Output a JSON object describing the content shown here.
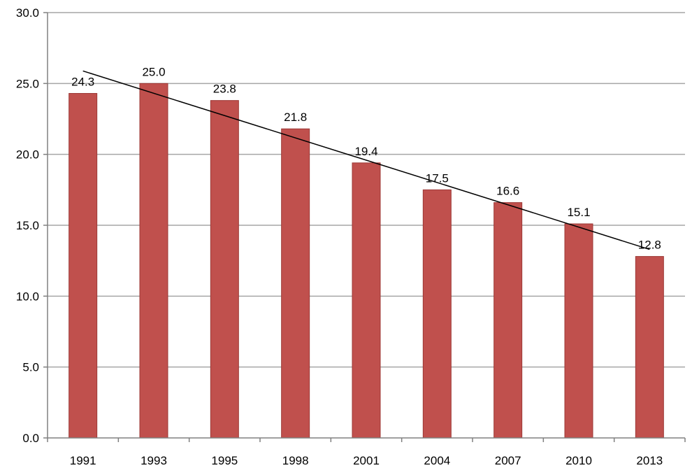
{
  "chart_data": {
    "type": "bar",
    "title": "",
    "xlabel": "",
    "ylabel": "",
    "categories": [
      "1991",
      "1993",
      "1995",
      "1998",
      "2001",
      "2004",
      "2007",
      "2010",
      "2013"
    ],
    "values": [
      24.3,
      25.0,
      23.8,
      21.8,
      19.4,
      17.5,
      16.6,
      15.1,
      12.8
    ],
    "data_labels": [
      "24.3",
      "25.0",
      "23.8",
      "21.8",
      "19.4",
      "17.5",
      "16.6",
      "15.1",
      "12.8"
    ],
    "ylim": [
      0,
      30
    ],
    "yticks": [
      0,
      5,
      10,
      15,
      20,
      25,
      30
    ],
    "ytick_labels": [
      "0.0",
      "5.0",
      "10.0",
      "15.0",
      "20.0",
      "25.0",
      "30.0"
    ],
    "grid": true,
    "legend": "none",
    "trendline": {
      "type": "linear"
    },
    "colors": {
      "bar": "#c0504d",
      "bar_edge": "#9c3936",
      "grid": "#a6a6a6",
      "trend": "#000000"
    }
  }
}
